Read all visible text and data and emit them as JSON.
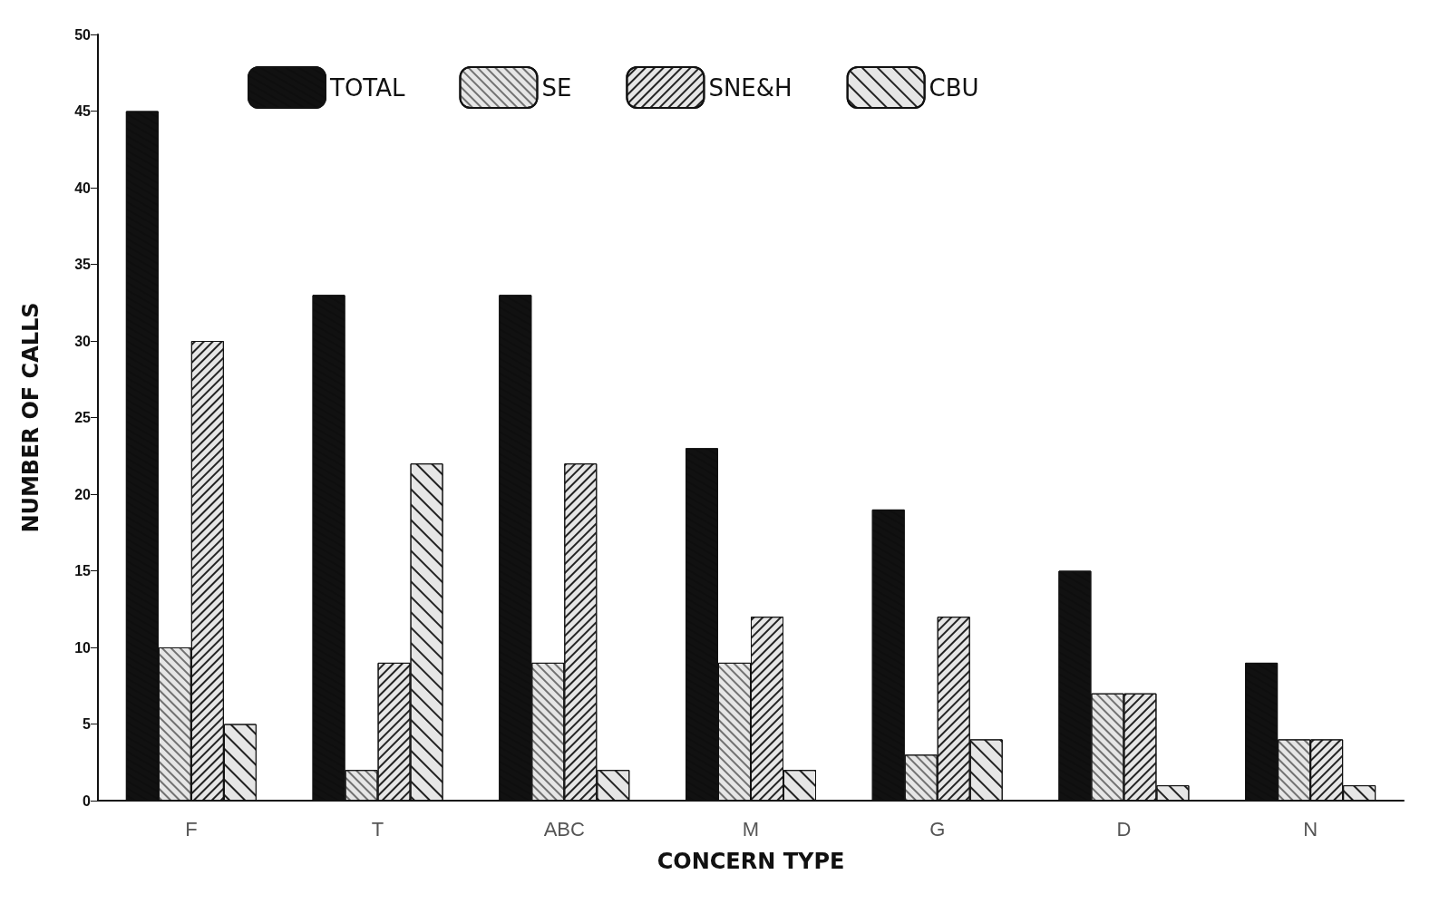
{
  "chart_data": {
    "type": "bar",
    "xlabel": "CONCERN TYPE",
    "ylabel": "NUMBER OF CALLS",
    "categories": [
      "F",
      "T",
      "ABC",
      "M",
      "G",
      "D",
      "N"
    ],
    "series": [
      {
        "name": "TOTAL",
        "color": "#111111",
        "values": [
          45,
          33,
          33,
          23,
          19,
          15,
          9
        ]
      },
      {
        "name": "SE",
        "color": "#e6e6e6",
        "values": [
          10,
          2,
          9,
          9,
          3,
          7,
          4
        ]
      },
      {
        "name": "SNE&H",
        "color": "#e6e6e6",
        "values": [
          30,
          9,
          22,
          12,
          12,
          7,
          4
        ]
      },
      {
        "name": "CBU",
        "color": "#e6e6e6",
        "values": [
          5,
          22,
          2,
          2,
          4,
          1,
          1
        ]
      }
    ],
    "ylim": [
      0,
      50
    ],
    "yticks": [
      0,
      5,
      10,
      15,
      20,
      25,
      30,
      35,
      40,
      45,
      50
    ],
    "grid": false,
    "legend": "top left"
  }
}
